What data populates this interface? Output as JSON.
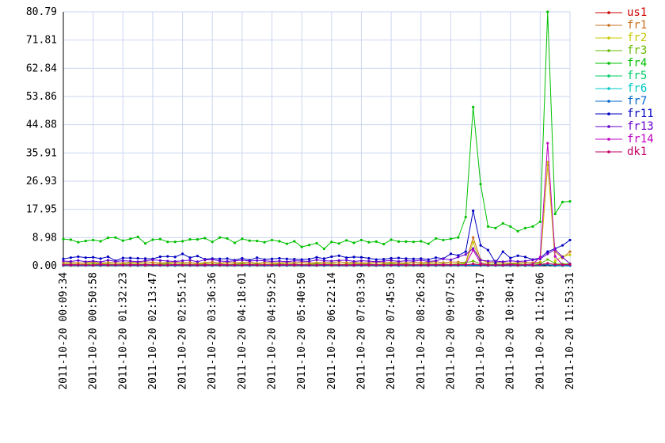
{
  "chart_data": {
    "type": "line",
    "categories": [
      "2011-10-20 00:09:34",
      null,
      null,
      null,
      "2011-10-20 00:50:58",
      null,
      null,
      null,
      "2011-10-20 01:32:23",
      null,
      null,
      null,
      "2011-10-20 02:13:47",
      null,
      null,
      null,
      "2011-10-20 02:55:12",
      null,
      null,
      null,
      "2011-10-20 03:36:36",
      null,
      null,
      null,
      "2011-10-20 04:18:01",
      null,
      null,
      null,
      "2011-10-20 04:59:25",
      null,
      null,
      null,
      "2011-10-20 05:40:50",
      null,
      null,
      null,
      "2011-10-20 06:22:14",
      null,
      null,
      null,
      "2011-10-20 07:03:39",
      null,
      null,
      null,
      "2011-10-20 07:45:03",
      null,
      null,
      null,
      "2011-10-20 08:26:28",
      null,
      null,
      null,
      "2011-10-20 09:07:52",
      null,
      null,
      null,
      "2011-10-20 09:49:17",
      null,
      null,
      null,
      "2011-10-20 10:30:41",
      null,
      null,
      null,
      "2011-10-20 11:12:06",
      null,
      null,
      null,
      "2011-10-20 11:53:31"
    ],
    "ylim": [
      0,
      80.79
    ],
    "yticks": [
      {
        "value": 0,
        "label": "0.00"
      },
      8.98,
      17.95,
      26.93,
      35.91,
      44.88,
      53.86,
      62.84,
      71.81,
      80.79
    ],
    "grid": true,
    "legend": "right",
    "series": [
      {
        "name": "us1",
        "color": "#cc0000",
        "values": [
          0.2,
          0.1,
          0.2,
          0.3,
          0.2,
          0.1,
          0.2,
          0.2,
          0.3,
          0.1,
          0.2,
          0.1,
          0.2,
          0.3,
          0.2,
          0.1,
          0.2,
          0.2,
          0.3,
          0.1,
          0.2,
          0.1,
          0.2,
          0.3,
          0.2,
          0.1,
          0.2,
          0.2,
          0.3,
          0.1,
          0.2,
          0.1,
          0.2,
          0.3,
          0.2,
          0.1,
          0.2,
          0.2,
          0.3,
          0.1,
          0.2,
          0.1,
          0.2,
          0.3,
          0.2,
          0.1,
          0.2,
          0.2,
          0.3,
          0.1,
          0.2,
          0.1,
          0.2,
          0.2,
          0.3,
          0.5,
          0.3,
          0.2,
          0.1,
          0.2,
          0.3,
          0.2,
          0.1,
          0.2,
          0.4,
          0.3,
          0.2,
          0.3,
          0.2
        ]
      },
      {
        "name": "fr1",
        "color": "#c87020",
        "values": [
          1,
          1.1,
          0.9,
          1,
          1.2,
          0.8,
          1.1,
          1,
          0.9,
          1.2,
          1,
          1.3,
          1.1,
          0.9,
          1,
          1.2,
          1,
          1.1,
          0.8,
          1,
          1.2,
          0.9,
          1.1,
          1,
          1,
          1.2,
          0.8,
          1.1,
          1,
          0.9,
          1.1,
          1,
          1.2,
          0.9,
          1,
          1.1,
          1,
          1.3,
          1,
          1.1,
          0.9,
          1,
          1.2,
          1,
          1.1,
          1,
          0.9,
          1.2,
          1,
          1.1,
          1.3,
          1,
          1.2,
          1.2,
          1,
          9,
          2,
          1,
          1.2,
          1,
          0.8,
          1,
          1.1,
          1,
          1.2,
          32,
          4.5,
          2.5,
          4.5
        ]
      },
      {
        "name": "fr2",
        "color": "#c8c800",
        "values": [
          0.6,
          0.7,
          0.5,
          0.6,
          0.8,
          0.6,
          0.7,
          0.5,
          0.6,
          0.8,
          0.6,
          0.7,
          0.5,
          0.6,
          0.8,
          0.6,
          0.7,
          0.5,
          0.6,
          0.8,
          0.6,
          0.7,
          0.5,
          0.6,
          0.8,
          0.6,
          0.7,
          0.5,
          0.6,
          0.8,
          0.6,
          0.7,
          0.5,
          0.6,
          0.8,
          0.6,
          0.7,
          0.5,
          0.6,
          0.8,
          0.6,
          0.7,
          0.5,
          0.6,
          0.8,
          0.6,
          0.7,
          0.5,
          0.6,
          0.8,
          0.6,
          0.7,
          0.5,
          0.7,
          0.6,
          7.5,
          1,
          0.5,
          0.6,
          0.5,
          0.6,
          0.7,
          0.5,
          0.6,
          0.8,
          33,
          1.5,
          3,
          3.5
        ]
      },
      {
        "name": "fr3",
        "color": "#66bb00",
        "values": [
          0.4,
          0.5,
          0.3,
          0.4,
          0.6,
          0.4,
          0.5,
          0.3,
          0.4,
          0.5,
          0.4,
          0.5,
          0.3,
          0.4,
          0.6,
          0.4,
          0.5,
          0.3,
          0.4,
          0.5,
          0.4,
          0.5,
          0.3,
          0.4,
          0.6,
          0.4,
          0.5,
          0.3,
          0.4,
          0.5,
          0.4,
          0.5,
          0.3,
          0.4,
          0.6,
          0.4,
          0.5,
          0.3,
          0.4,
          0.5,
          0.4,
          0.5,
          0.3,
          0.4,
          0.6,
          0.4,
          0.5,
          0.3,
          0.4,
          0.5,
          0.4,
          0.5,
          0.3,
          0.5,
          1,
          1.5,
          0.6,
          0.4,
          0.5,
          0.4,
          0.6,
          0.5,
          0.4,
          0.6,
          0.7,
          2,
          0.8,
          0.6,
          0.7
        ]
      },
      {
        "name": "fr4",
        "color": "#00c000",
        "values": [
          8.5,
          8.3,
          7.5,
          7.9,
          8.2,
          7.8,
          8.9,
          9,
          8,
          8.6,
          9.2,
          7.1,
          8.3,
          8.5,
          7.6,
          7.6,
          7.8,
          8.4,
          8.4,
          8.8,
          7.6,
          9,
          8.7,
          7.3,
          8.6,
          8,
          7.9,
          7.5,
          8.2,
          7.8,
          7,
          7.8,
          6,
          6.6,
          7.2,
          5.4,
          7.6,
          7.1,
          8.1,
          7.3,
          8.2,
          7.5,
          7.7,
          6.9,
          8.3,
          7.7,
          7.7,
          7.6,
          7.8,
          7,
          8.7,
          8.2,
          8.6,
          9,
          15.5,
          50.5,
          26,
          12.5,
          12,
          13.5,
          12.5,
          11,
          12,
          12.5,
          14,
          80.79,
          16.5,
          20.3,
          20.5
        ]
      },
      {
        "name": "fr5",
        "color": "#00cc66",
        "values": [
          0.1,
          0.1,
          0.1,
          0.2,
          0.1,
          0.1,
          0.1,
          0.1,
          0.2,
          0.1,
          0.1,
          0.1,
          0.1,
          0.2,
          0.1,
          0.1,
          0.1,
          0.1,
          0.2,
          0.1,
          0.1,
          0.1,
          0.1,
          0.2,
          0.1,
          0.1,
          0.1,
          0.1,
          0.2,
          0.1,
          0.1,
          0.1,
          0.1,
          0.2,
          0.1,
          0.1,
          0.1,
          0.1,
          0.2,
          0.1,
          0.1,
          0.1,
          0.1,
          0.2,
          0.1,
          0.1,
          0.1,
          0.1,
          0.2,
          0.1,
          0.1,
          0.1,
          0.1,
          0.1,
          0.1,
          0.2,
          0.1,
          0.1,
          0.1,
          0.1,
          0.1,
          0.1,
          0.1,
          0.1,
          0.2,
          0.3,
          0.1,
          0.1,
          0.1
        ]
      },
      {
        "name": "fr6",
        "color": "#00c8c8",
        "values": [
          0.1,
          0.1,
          0.2,
          0.1,
          0.1,
          0.1,
          0.1,
          0.2,
          0.1,
          0.1,
          0.1,
          0.1,
          0.2,
          0.1,
          0.1,
          0.1,
          0.1,
          0.2,
          0.1,
          0.1,
          0.1,
          0.1,
          0.2,
          0.1,
          0.1,
          0.1,
          0.1,
          0.2,
          0.1,
          0.1,
          0.1,
          0.1,
          0.2,
          0.1,
          0.1,
          0.1,
          0.1,
          0.2,
          0.1,
          0.1,
          0.1,
          0.1,
          0.2,
          0.1,
          0.1,
          0.1,
          0.1,
          0.2,
          0.1,
          0.1,
          0.1,
          0.1,
          0.2,
          0.1,
          0.1,
          0.2,
          0.1,
          0.1,
          0.1,
          0.1,
          0.1,
          0.1,
          0.1,
          0.1,
          0.2,
          0.3,
          0.1,
          0.1,
          0.1
        ]
      },
      {
        "name": "fr7",
        "color": "#0066cc",
        "values": [
          0.1,
          0.2,
          0.1,
          0.1,
          0.1,
          0.1,
          0.2,
          0.1,
          0.1,
          0.1,
          0.1,
          0.2,
          0.1,
          0.1,
          0.1,
          0.1,
          0.2,
          0.1,
          0.1,
          0.1,
          0.1,
          0.2,
          0.1,
          0.1,
          0.1,
          0.1,
          0.2,
          0.1,
          0.1,
          0.1,
          0.1,
          0.2,
          0.1,
          0.1,
          0.1,
          0.1,
          0.2,
          0.1,
          0.1,
          0.1,
          0.1,
          0.2,
          0.1,
          0.1,
          0.1,
          0.1,
          0.2,
          0.1,
          0.1,
          0.1,
          0.1,
          0.2,
          0.1,
          0.1,
          0.1,
          0.2,
          0.1,
          0.1,
          0.1,
          0.1,
          0.1,
          0.1,
          0.1,
          0.1,
          0.2,
          0.3,
          0.1,
          0.1,
          0.1
        ]
      },
      {
        "name": "fr11",
        "color": "#0000c0",
        "values": [
          2.2,
          2.6,
          2.9,
          2.6,
          2.7,
          2.3,
          2.9,
          1.6,
          2.5,
          2.5,
          2.4,
          2.3,
          2.2,
          2.9,
          3,
          2.8,
          3.8,
          2.6,
          3.1,
          2.1,
          2.3,
          2.2,
          2.3,
          1.8,
          2.4,
          1.8,
          2.6,
          2,
          2.2,
          2.4,
          2.2,
          2.1,
          2,
          2.1,
          2.7,
          2.3,
          2.9,
          3.2,
          2.6,
          2.8,
          2.7,
          2.4,
          2,
          2.1,
          2.4,
          2.5,
          2.3,
          2.2,
          2.3,
          2,
          2.6,
          2.3,
          3.8,
          3.3,
          4.5,
          17.5,
          6.5,
          5,
          1,
          4.5,
          2.5,
          3.2,
          2.8,
          2,
          2.5,
          4.5,
          5.5,
          6.5,
          8.2
        ]
      },
      {
        "name": "fr13",
        "color": "#6600cc",
        "values": [
          1.5,
          1.4,
          1.7,
          1.3,
          1.5,
          1.2,
          1.8,
          1.4,
          1.6,
          1.5,
          1.3,
          1.6,
          1.9,
          1.7,
          1.5,
          1.4,
          1.6,
          1.8,
          1.3,
          1.9,
          2,
          1.5,
          1.4,
          1.6,
          1.8,
          1.5,
          1.7,
          1.6,
          1.4,
          1.5,
          1.3,
          1.6,
          1.5,
          1.4,
          1.9,
          1.6,
          1.5,
          1.7,
          1.8,
          1.4,
          1.6,
          1.5,
          1.3,
          1.5,
          1.7,
          1.4,
          1.6,
          1.5,
          1.8,
          1.4,
          1.6,
          2.2,
          1.9,
          2.8,
          3.6,
          5.5,
          1.8,
          1.5,
          1.5,
          1.3,
          1.6,
          1.4,
          1.5,
          1.9,
          2.2,
          3.8,
          5.2,
          2.8,
          0.6
        ]
      },
      {
        "name": "fr14",
        "color": "#c000c0",
        "values": [
          0.3,
          0.4,
          0.3,
          0.2,
          0.3,
          0.4,
          0.3,
          0.3,
          0.2,
          0.4,
          0.3,
          0.4,
          0.3,
          0.2,
          0.3,
          0.4,
          0.3,
          0.3,
          0.2,
          0.4,
          0.3,
          0.4,
          0.3,
          0.2,
          0.3,
          0.4,
          0.3,
          0.3,
          0.2,
          0.4,
          0.3,
          0.4,
          0.3,
          0.2,
          0.3,
          0.4,
          0.3,
          0.3,
          0.2,
          0.4,
          0.3,
          0.4,
          0.3,
          0.2,
          0.3,
          0.4,
          0.3,
          0.3,
          0.2,
          0.4,
          0.3,
          0.4,
          0.3,
          0.3,
          0.4,
          5,
          0.8,
          0.3,
          0.2,
          0.3,
          0.4,
          0.3,
          0.3,
          0.5,
          2.8,
          39,
          3,
          0.3,
          0.4
        ]
      },
      {
        "name": "dk1",
        "color": "#c00066",
        "values": [
          0.3,
          0.2,
          0.3,
          0.3,
          0.2,
          0.3,
          0.2,
          0.3,
          0.3,
          0.2,
          0.3,
          0.2,
          0.3,
          0.3,
          0.2,
          0.3,
          0.2,
          0.3,
          0.3,
          0.2,
          0.3,
          0.2,
          0.3,
          0.3,
          0.2,
          0.3,
          0.2,
          0.3,
          0.3,
          0.2,
          0.3,
          0.2,
          0.3,
          0.3,
          0.2,
          0.3,
          0.2,
          0.3,
          0.3,
          0.2,
          0.3,
          0.2,
          0.3,
          0.3,
          0.2,
          0.3,
          0.2,
          0.3,
          0.3,
          0.2,
          0.3,
          0.2,
          0.3,
          0.3,
          0.3,
          0.6,
          0.3,
          0.2,
          0.3,
          0.2,
          0.3,
          0.2,
          0.3,
          0.2,
          0.4,
          0.8,
          0.4,
          0.3,
          0.4
        ]
      }
    ]
  }
}
